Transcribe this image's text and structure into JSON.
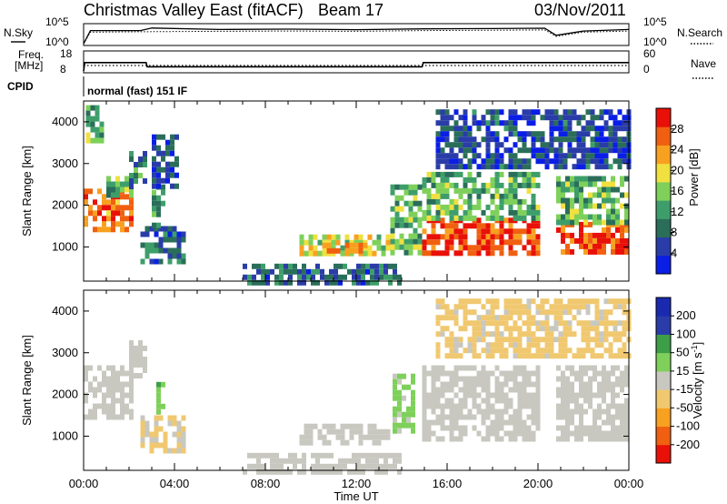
{
  "header": {
    "radar": "Christmas Valley East (fitACF)",
    "beam": "Beam 17",
    "date": "03/Nov/2011"
  },
  "noise_panel": {
    "left_label": "N.Sky",
    "left_ticks": [
      "10^5",
      "10^0"
    ],
    "right_label": "N.Search",
    "right_ticks": [
      "10^5",
      "10^0"
    ]
  },
  "freq_panel": {
    "left_label_1": "Freq.",
    "left_label_2": "[MHz]",
    "left_ticks": [
      "18",
      "8"
    ],
    "right_label": "Nave",
    "right_ticks": [
      "60",
      "0"
    ]
  },
  "cpid": {
    "label": "CPID",
    "value": "normal (fast) 151 IF"
  },
  "time_axis": {
    "ticks": [
      "00:00",
      "04:00",
      "08:00",
      "12:00",
      "16:00",
      "20:00",
      "00:00"
    ],
    "label": "Time UT"
  },
  "colors": {
    "power": [
      "#0a1ee6",
      "#2a3ca8",
      "#2a6e5a",
      "#3e9e6a",
      "#7ed05a",
      "#f0e040",
      "#f8a020",
      "#f06010",
      "#e81008"
    ],
    "velocity": [
      "#e81008",
      "#f06010",
      "#f8a020",
      "#f0c870",
      "#c8c8c0",
      "#7ed05a",
      "#3c9e48",
      "#2a3ca8",
      "#1a2ab0"
    ]
  },
  "chart_data": [
    {
      "type": "line",
      "title": "",
      "ylabel": "N.Sky",
      "yscale": "log",
      "ylim": [
        1,
        100000
      ],
      "xlim": [
        0,
        24
      ],
      "series": [
        {
          "name": "N.Sky",
          "x": [
            0,
            0.3,
            2.5,
            3.0,
            6,
            9,
            12,
            15,
            18,
            20.3,
            20.8,
            22,
            24
          ],
          "y": [
            1,
            4000,
            4000,
            20000,
            8000,
            10000,
            7000,
            12000,
            14000,
            18000,
            200,
            3000,
            8000
          ]
        },
        {
          "name": "N.Search",
          "x": [
            0,
            0.3,
            3,
            6,
            9,
            12,
            15,
            18,
            20.3,
            20.8,
            22,
            24
          ],
          "y": [
            1,
            1500,
            2000,
            2500,
            3000,
            2500,
            4000,
            5000,
            6000,
            100,
            1500,
            3000
          ]
        }
      ]
    },
    {
      "type": "line",
      "title": "",
      "ylabel": "Freq. [MHz]",
      "ylim": [
        8,
        18
      ],
      "xlim": [
        0,
        24
      ],
      "series": [
        {
          "name": "Freq.",
          "x": [
            0,
            0.05,
            2.75,
            2.8,
            14.9,
            14.95,
            24
          ],
          "y": [
            8,
            12.6,
            12.6,
            10.3,
            10.3,
            12.6,
            12.6
          ]
        },
        {
          "name": "Nave",
          "x": [
            0,
            24
          ],
          "y": [
            18,
            18
          ]
        }
      ]
    },
    {
      "type": "heatmap",
      "title": "",
      "xlabel": "",
      "ylabel": "Slant Range [km]",
      "xlim": [
        0,
        24
      ],
      "ylim": [
        180,
        4500
      ],
      "yticks": [
        1000,
        2000,
        3000,
        4000
      ],
      "colorbar": {
        "label": "Power [dB]",
        "ticks": [
          4,
          8,
          12,
          16,
          20,
          24,
          28
        ],
        "range": [
          0,
          32
        ]
      },
      "regions": [
        {
          "t0": 0.0,
          "t1": 2.1,
          "r0": 1400,
          "r1": 2400,
          "level": 26
        },
        {
          "t0": 1.0,
          "t1": 2.2,
          "r0": 2300,
          "r1": 2700,
          "level": 14
        },
        {
          "t0": 2.0,
          "t1": 2.8,
          "r0": 2500,
          "r1": 3300,
          "level": 10
        },
        {
          "t0": 0.1,
          "t1": 0.8,
          "r0": 3500,
          "r1": 4400,
          "level": 14
        },
        {
          "t0": 2.5,
          "t1": 4.5,
          "r0": 700,
          "r1": 1500,
          "level": 8
        },
        {
          "t0": 3.0,
          "t1": 3.5,
          "r0": 1500,
          "r1": 2500,
          "level": 12
        },
        {
          "t0": 3.0,
          "t1": 4.2,
          "r0": 2500,
          "r1": 3700,
          "level": 6
        },
        {
          "t0": 7.0,
          "t1": 14.0,
          "r0": 200,
          "r1": 600,
          "level": 8
        },
        {
          "t0": 9.5,
          "t1": 13.5,
          "r0": 800,
          "r1": 1300,
          "level": 18
        },
        {
          "t0": 10.5,
          "t1": 12.5,
          "r0": 900,
          "r1": 1100,
          "level": 26
        },
        {
          "t0": 13.5,
          "t1": 14.8,
          "r0": 900,
          "r1": 2500,
          "level": 14
        },
        {
          "t0": 14.9,
          "t1": 20.0,
          "r0": 900,
          "r1": 1700,
          "level": 28
        },
        {
          "t0": 14.9,
          "t1": 20.0,
          "r0": 1700,
          "r1": 2800,
          "level": 14
        },
        {
          "t0": 20.8,
          "t1": 24.0,
          "r0": 900,
          "r1": 1600,
          "level": 28
        },
        {
          "t0": 20.8,
          "t1": 24.0,
          "r0": 1600,
          "r1": 2700,
          "level": 14
        },
        {
          "t0": 15.5,
          "t1": 24.0,
          "r0": 2900,
          "r1": 4300,
          "level": 6
        }
      ]
    },
    {
      "type": "heatmap",
      "title": "",
      "xlabel": "Time UT",
      "ylabel": "Slant Range [km]",
      "xlim": [
        0,
        24
      ],
      "ylim": [
        180,
        4500
      ],
      "yticks": [
        1000,
        2000,
        3000,
        4000
      ],
      "colorbar": {
        "label": "Velocity [m s^-1]",
        "ticks": [
          -200,
          -100,
          -50,
          -15,
          15,
          50,
          100,
          200
        ],
        "range": [
          -250,
          250
        ]
      },
      "regions": [
        {
          "t0": 0.0,
          "t1": 2.2,
          "r0": 1400,
          "r1": 2700,
          "level": 0
        },
        {
          "t0": 2.0,
          "t1": 2.8,
          "r0": 2500,
          "r1": 3300,
          "level": 0
        },
        {
          "t0": 2.5,
          "t1": 4.5,
          "r0": 700,
          "r1": 1500,
          "level": -30
        },
        {
          "t0": 3.2,
          "t1": 3.6,
          "r0": 1600,
          "r1": 2300,
          "level": 80
        },
        {
          "t0": 7.0,
          "t1": 14.0,
          "r0": 200,
          "r1": 600,
          "level": 0
        },
        {
          "t0": 9.5,
          "t1": 13.5,
          "r0": 800,
          "r1": 1300,
          "level": 0
        },
        {
          "t0": 13.6,
          "t1": 14.6,
          "r0": 1100,
          "r1": 2500,
          "level": 40
        },
        {
          "t0": 14.9,
          "t1": 20.0,
          "r0": 900,
          "r1": 2700,
          "level": 0
        },
        {
          "t0": 20.8,
          "t1": 24.0,
          "r0": 900,
          "r1": 2700,
          "level": 0
        },
        {
          "t0": 15.5,
          "t1": 24.0,
          "r0": 2900,
          "r1": 4300,
          "level": -40
        }
      ]
    }
  ]
}
